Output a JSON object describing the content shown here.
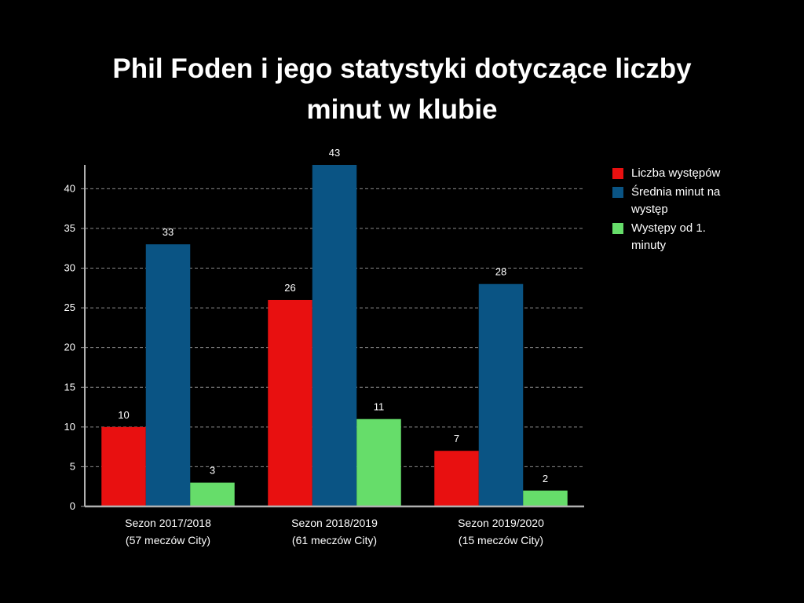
{
  "chart_data": {
    "type": "bar",
    "title_lines": [
      "Phil Foden i jego statystyki dotyczące liczby",
      "minut w klubie"
    ],
    "categories": [
      [
        "Sezon 2017/2018",
        "(57 meczów City)"
      ],
      [
        "Sezon 2018/2019",
        "(61 meczów City)"
      ],
      [
        "Sezon 2019/2020",
        "(15 meczów City)"
      ]
    ],
    "series": [
      {
        "name": "Liczba występów",
        "color": "#e81010",
        "values": [
          10,
          26,
          7
        ]
      },
      {
        "name": "Średnia minut na występ",
        "color": "#0a5484",
        "values": [
          33,
          43,
          28
        ]
      },
      {
        "name": "Występy od 1. minuty",
        "color": "#66dd6a",
        "values": [
          3,
          11,
          2
        ]
      }
    ],
    "y_ticks": [
      "0",
      "5",
      "10",
      "15",
      "20",
      "25",
      "30",
      "35",
      "40"
    ],
    "ylim": [
      0,
      43
    ],
    "grid": true,
    "grid_style": "dashed",
    "legend_position": "right",
    "xlabel": "",
    "ylabel": ""
  },
  "legend": {
    "items": [
      {
        "text": "Liczba występów",
        "color": "#e81010"
      },
      {
        "text": "Średnia minut na występ",
        "color": "#0a5484"
      },
      {
        "text": "Występy od 1. minuty",
        "color": "#66dd6a"
      }
    ]
  }
}
